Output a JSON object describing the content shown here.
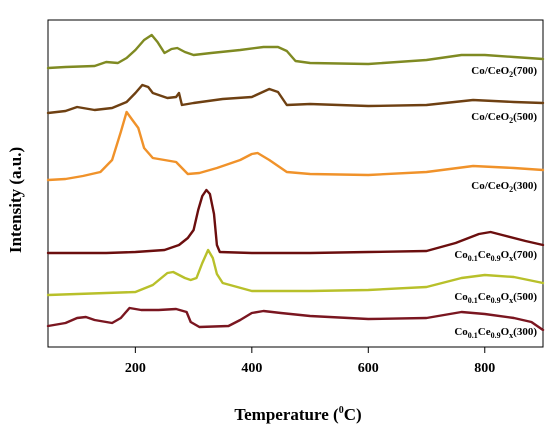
{
  "chart_data": {
    "type": "line",
    "xlabel": "Temperature (",
    "xlabel_sup": "0",
    "xlabel_end": "C)",
    "ylabel": "Intensity (a.u.)",
    "xlim": [
      50,
      900
    ],
    "xticks": [
      200,
      400,
      600,
      800
    ],
    "xtick_labels": [
      "200",
      "400",
      "600",
      "800"
    ],
    "y_ticks_shown": false,
    "grid": false,
    "legend": "inline labels at right",
    "series": [
      {
        "name": "Co/CeO2(700)",
        "label_parts": [
          "Co/CeO",
          {
            "sub": "2"
          },
          "(700)"
        ],
        "color": "#7f8a22",
        "points": [
          [
            50,
            68
          ],
          [
            80,
            67
          ],
          [
            130,
            66
          ],
          [
            150,
            62
          ],
          [
            170,
            63
          ],
          [
            185,
            58
          ],
          [
            200,
            50
          ],
          [
            215,
            40
          ],
          [
            228,
            35
          ],
          [
            238,
            42
          ],
          [
            250,
            53
          ],
          [
            262,
            49
          ],
          [
            272,
            48
          ],
          [
            285,
            52
          ],
          [
            300,
            55
          ],
          [
            330,
            53
          ],
          [
            380,
            50
          ],
          [
            420,
            47
          ],
          [
            445,
            47
          ],
          [
            460,
            51
          ],
          [
            475,
            61
          ],
          [
            500,
            63
          ],
          [
            600,
            64
          ],
          [
            700,
            60
          ],
          [
            760,
            55
          ],
          [
            800,
            55
          ],
          [
            850,
            57
          ],
          [
            900,
            59
          ]
        ]
      },
      {
        "name": "Co/CeO2(500)",
        "label_parts": [
          "Co/CeO",
          {
            "sub": "2"
          },
          "(500)"
        ],
        "color": "#6e4012",
        "points": [
          [
            50,
            113
          ],
          [
            80,
            111
          ],
          [
            100,
            107
          ],
          [
            130,
            110
          ],
          [
            160,
            108
          ],
          [
            185,
            102
          ],
          [
            200,
            93
          ],
          [
            212,
            85
          ],
          [
            222,
            87
          ],
          [
            230,
            93
          ],
          [
            255,
            98
          ],
          [
            270,
            97
          ],
          [
            275,
            93
          ],
          [
            280,
            105
          ],
          [
            300,
            103
          ],
          [
            350,
            99
          ],
          [
            400,
            97
          ],
          [
            430,
            89
          ],
          [
            445,
            92
          ],
          [
            460,
            105
          ],
          [
            500,
            104
          ],
          [
            600,
            106
          ],
          [
            700,
            105
          ],
          [
            780,
            100
          ],
          [
            850,
            102
          ],
          [
            900,
            103
          ]
        ]
      },
      {
        "name": "Co/CeO2(300)",
        "label_parts": [
          "Co/CeO",
          {
            "sub": "2"
          },
          "(300)"
        ],
        "color": "#f0922a",
        "points": [
          [
            50,
            180
          ],
          [
            80,
            179
          ],
          [
            110,
            176
          ],
          [
            140,
            172
          ],
          [
            160,
            160
          ],
          [
            175,
            132
          ],
          [
            185,
            112
          ],
          [
            195,
            120
          ],
          [
            205,
            128
          ],
          [
            215,
            148
          ],
          [
            230,
            158
          ],
          [
            250,
            160
          ],
          [
            270,
            162
          ],
          [
            290,
            174
          ],
          [
            310,
            173
          ],
          [
            340,
            168
          ],
          [
            380,
            160
          ],
          [
            400,
            154
          ],
          [
            410,
            153
          ],
          [
            430,
            160
          ],
          [
            460,
            172
          ],
          [
            500,
            174
          ],
          [
            600,
            175
          ],
          [
            700,
            172
          ],
          [
            780,
            166
          ],
          [
            850,
            168
          ],
          [
            900,
            170
          ]
        ]
      },
      {
        "name": "Co0.1Ce0.9Ox(700)",
        "label_parts": [
          "Co",
          {
            "sub": "0.1"
          },
          "Ce",
          {
            "sub": "0.9"
          },
          "O",
          {
            "sub": "x"
          },
          "(700)"
        ],
        "color": "#6b0e0e",
        "points": [
          [
            50,
            253
          ],
          [
            150,
            253
          ],
          [
            200,
            252
          ],
          [
            250,
            250
          ],
          [
            275,
            245
          ],
          [
            290,
            238
          ],
          [
            300,
            230
          ],
          [
            308,
            210
          ],
          [
            315,
            196
          ],
          [
            322,
            190
          ],
          [
            328,
            194
          ],
          [
            335,
            214
          ],
          [
            340,
            245
          ],
          [
            345,
            252
          ],
          [
            400,
            253
          ],
          [
            500,
            253
          ],
          [
            600,
            252
          ],
          [
            700,
            251
          ],
          [
            750,
            243
          ],
          [
            790,
            234
          ],
          [
            810,
            232
          ],
          [
            830,
            235
          ],
          [
            870,
            241
          ],
          [
            900,
            245
          ]
        ]
      },
      {
        "name": "Co0.1Ce0.9Ox(500)",
        "label_parts": [
          "Co",
          {
            "sub": "0.1"
          },
          "Ce",
          {
            "sub": "0.9"
          },
          "O",
          {
            "sub": "x"
          },
          "(500)"
        ],
        "color": "#b8c02a",
        "points": [
          [
            50,
            295
          ],
          [
            150,
            293
          ],
          [
            200,
            292
          ],
          [
            230,
            285
          ],
          [
            255,
            273
          ],
          [
            265,
            272
          ],
          [
            285,
            278
          ],
          [
            295,
            280
          ],
          [
            305,
            278
          ],
          [
            315,
            263
          ],
          [
            325,
            250
          ],
          [
            333,
            258
          ],
          [
            340,
            274
          ],
          [
            350,
            283
          ],
          [
            400,
            291
          ],
          [
            500,
            291
          ],
          [
            600,
            290
          ],
          [
            700,
            287
          ],
          [
            760,
            278
          ],
          [
            800,
            275
          ],
          [
            850,
            277
          ],
          [
            900,
            283
          ]
        ]
      },
      {
        "name": "Co0.1Ce0.9Ox(300)",
        "label_parts": [
          "Co",
          {
            "sub": "0.1"
          },
          "Ce",
          {
            "sub": "0.9"
          },
          "O",
          {
            "sub": "x"
          },
          "(300)"
        ],
        "color": "#7a1620",
        "points": [
          [
            50,
            326
          ],
          [
            80,
            323
          ],
          [
            100,
            318
          ],
          [
            115,
            317
          ],
          [
            130,
            320
          ],
          [
            160,
            323
          ],
          [
            175,
            318
          ],
          [
            190,
            308
          ],
          [
            210,
            310
          ],
          [
            240,
            310
          ],
          [
            270,
            309
          ],
          [
            288,
            312
          ],
          [
            295,
            322
          ],
          [
            310,
            327
          ],
          [
            360,
            326
          ],
          [
            380,
            320
          ],
          [
            400,
            313
          ],
          [
            420,
            311
          ],
          [
            450,
            313
          ],
          [
            500,
            316
          ],
          [
            600,
            319
          ],
          [
            700,
            318
          ],
          [
            760,
            312
          ],
          [
            800,
            314
          ],
          [
            850,
            318
          ],
          [
            880,
            322
          ],
          [
            900,
            330
          ]
        ]
      }
    ]
  }
}
